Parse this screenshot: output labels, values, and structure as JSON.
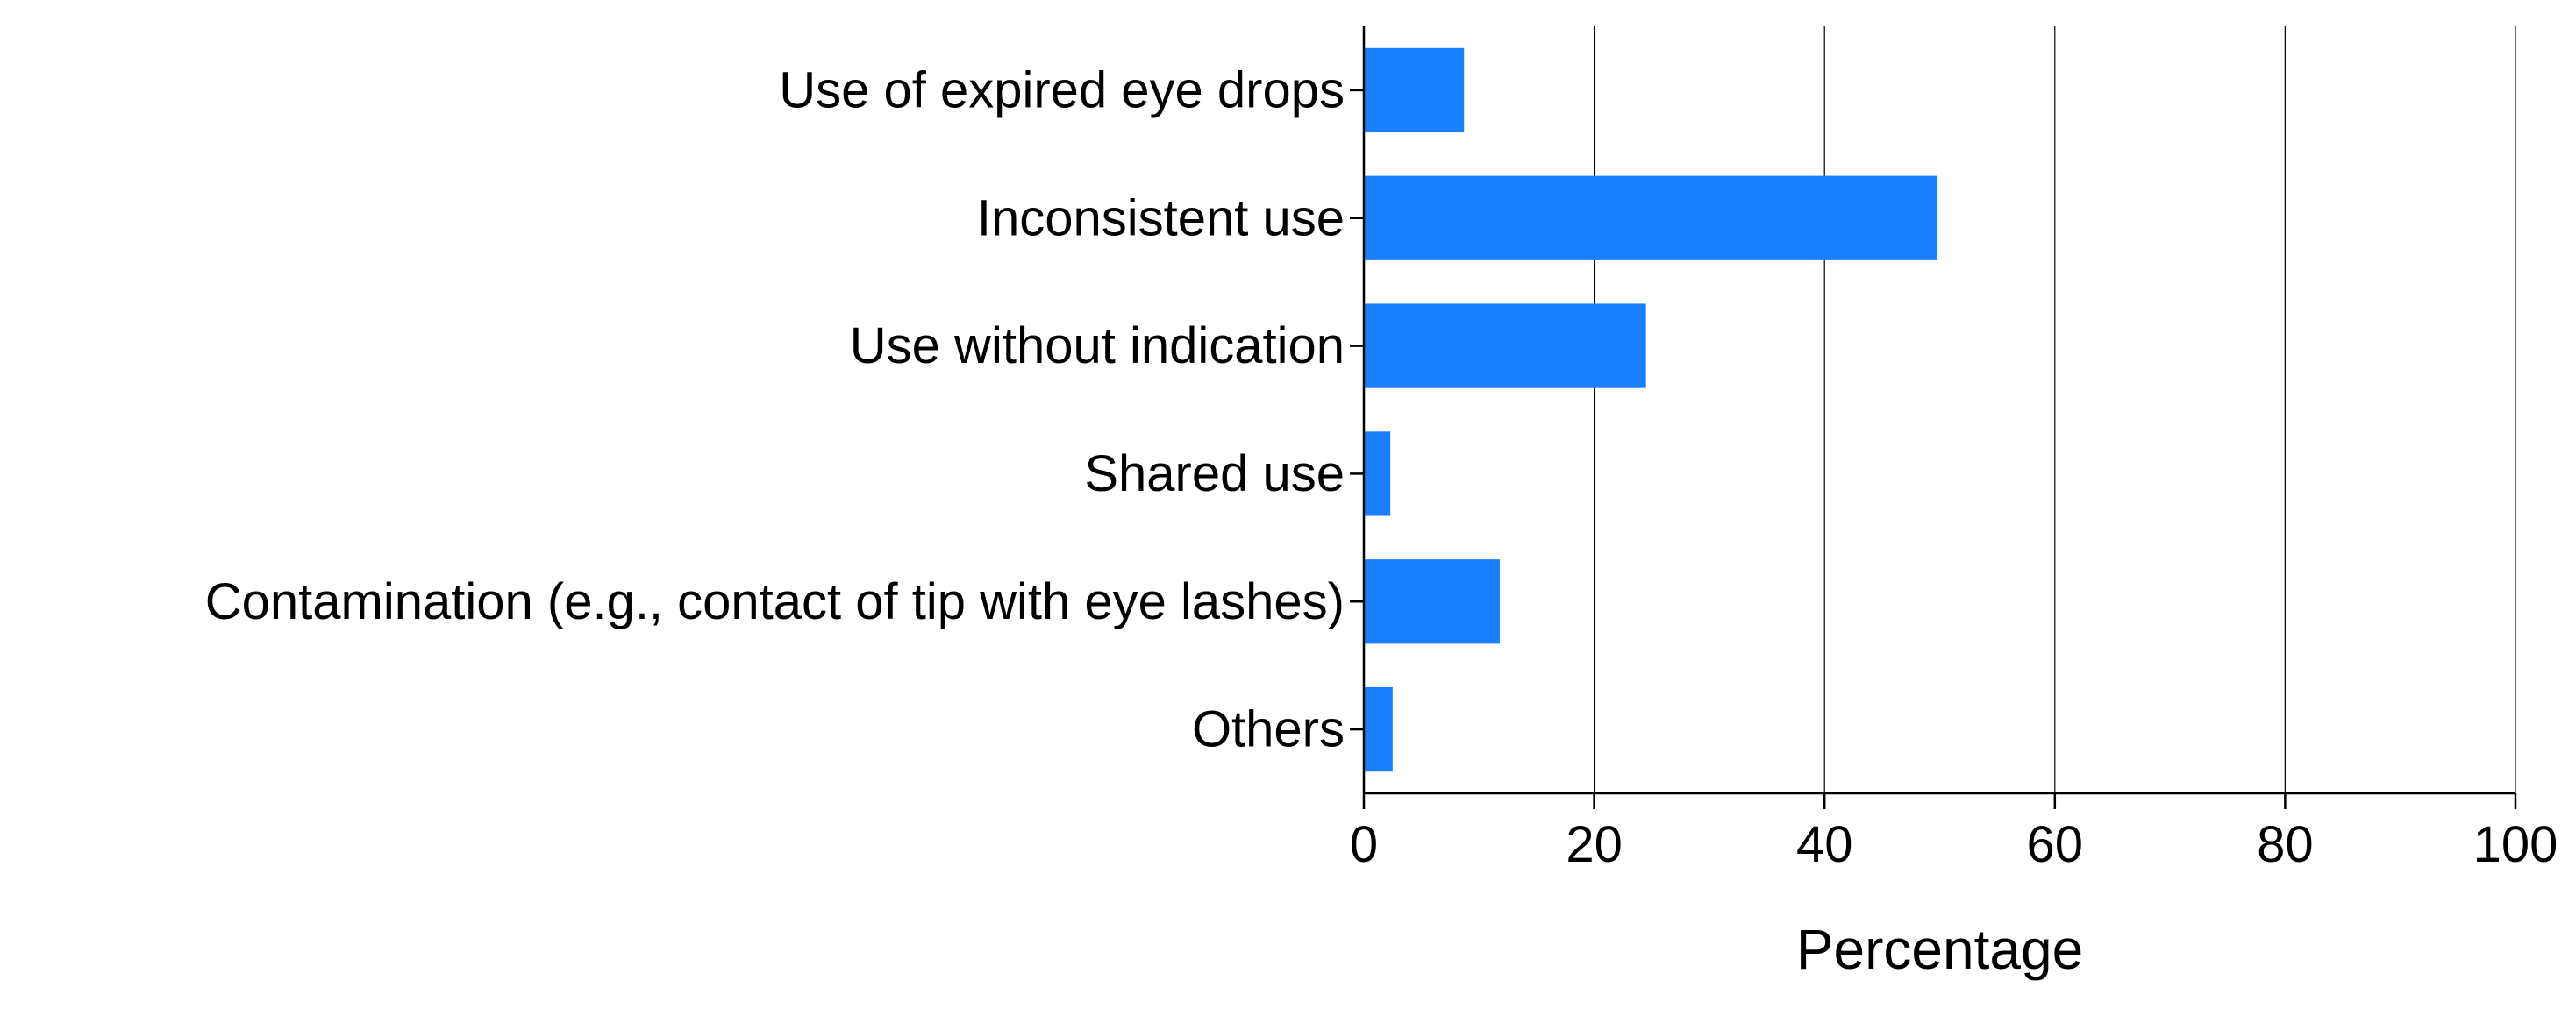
{
  "chart_data": {
    "type": "bar",
    "orientation": "horizontal",
    "categories": [
      "Use of expired eye drops",
      "Inconsistent use",
      "Use without indication",
      "Shared use",
      "Contamination (e.g., contact of tip with eye lashes)",
      "Others"
    ],
    "values": [
      8.7,
      49.8,
      24.5,
      2.3,
      11.8,
      2.5
    ],
    "title": "",
    "xlabel": "Percentage",
    "ylabel": "",
    "xlim": [
      0,
      100
    ],
    "xticks": [
      "0",
      "20",
      "40",
      "60",
      "80",
      "100"
    ],
    "grid": "vertical major gridlines",
    "legend": "none",
    "bar_color": "#1a7fff"
  }
}
